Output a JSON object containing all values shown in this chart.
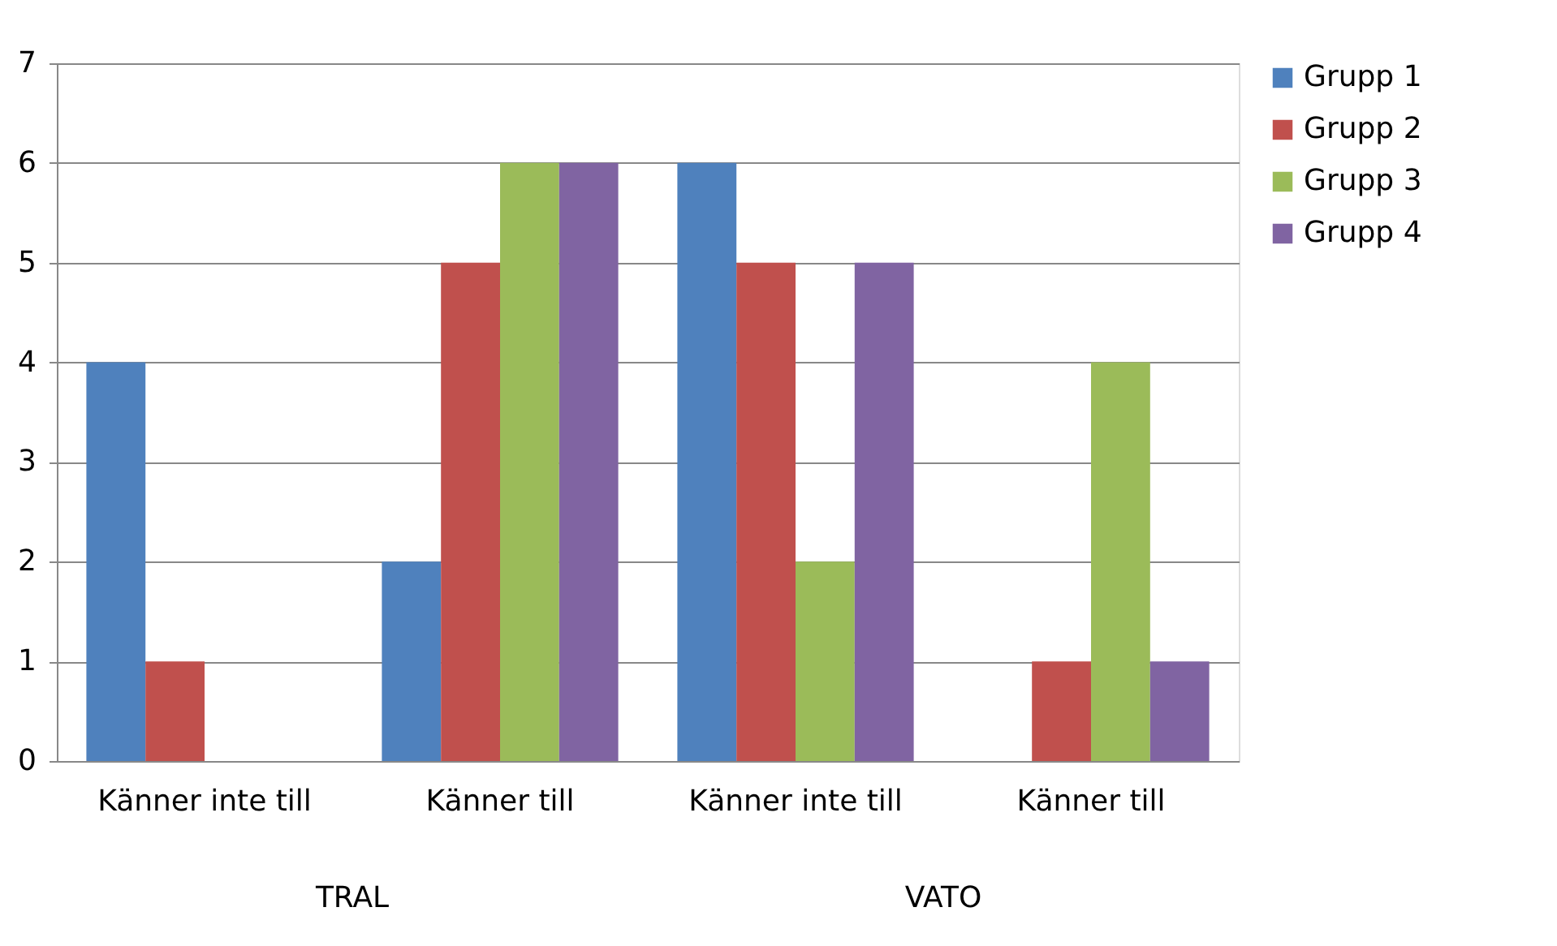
{
  "chart_data": {
    "type": "bar",
    "categories": [
      "Känner inte till",
      "Känner till",
      "Känner inte till",
      "Känner till"
    ],
    "series": [
      {
        "name": "Grupp 1",
        "color": "#4f81bd",
        "values": [
          4,
          2,
          6,
          0
        ]
      },
      {
        "name": "Grupp 2",
        "color": "#c0504d",
        "values": [
          1,
          5,
          5,
          1
        ]
      },
      {
        "name": "Grupp 3",
        "color": "#9bbb59",
        "values": [
          0,
          6,
          2,
          4
        ]
      },
      {
        "name": "Grupp 4",
        "color": "#8064a2",
        "values": [
          0,
          6,
          5,
          1
        ]
      }
    ],
    "annotations": [
      "TRAL",
      "VATO"
    ],
    "ylim": [
      0,
      7
    ],
    "yticks": [
      0,
      1,
      2,
      3,
      4,
      5,
      6,
      7
    ],
    "grid": "y",
    "legend": "right"
  }
}
